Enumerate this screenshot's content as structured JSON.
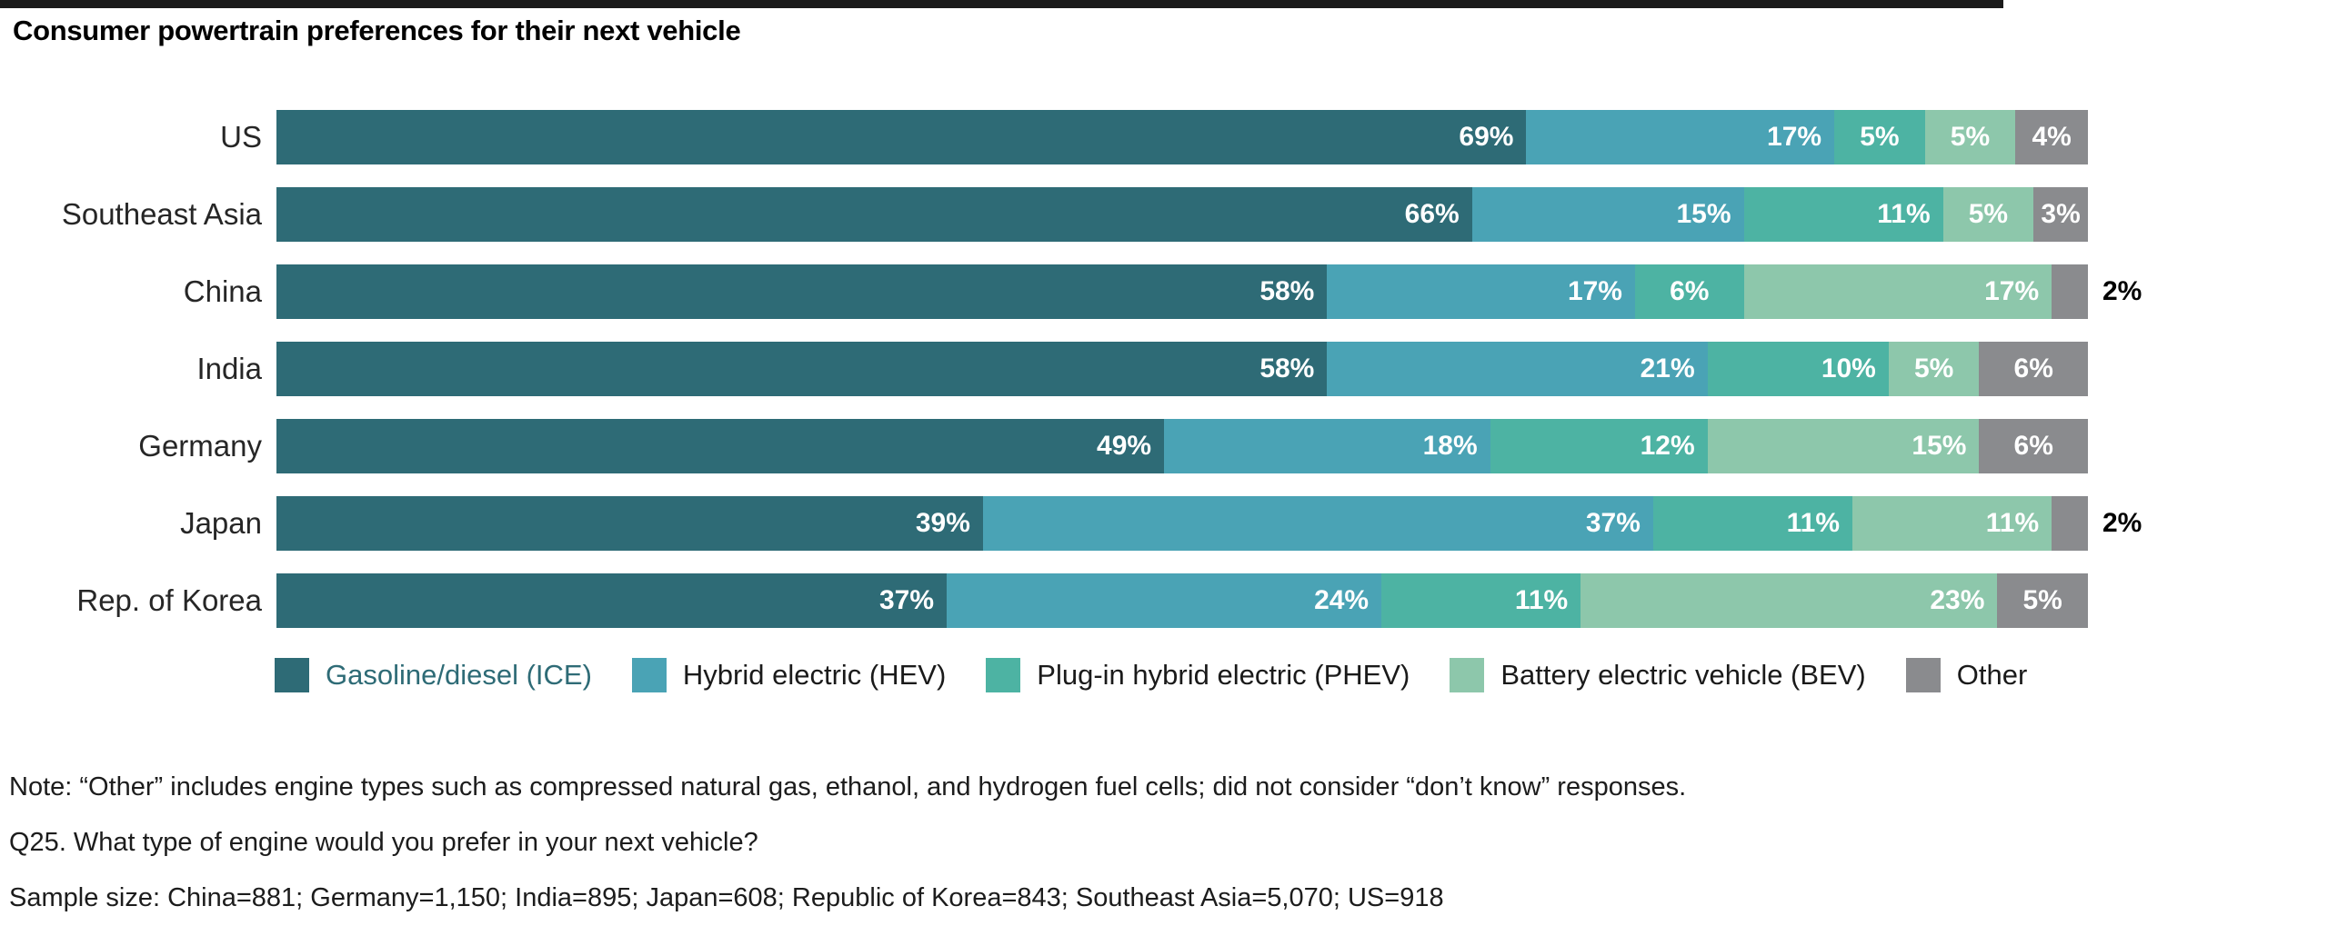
{
  "page": {
    "title": "Consumer powertrain preferences for their next vehicle"
  },
  "colors": {
    "top_rule": "#1a1a1a",
    "ice": "#2e6b76",
    "hev": "#4aa3b5",
    "phev": "#4db3a3",
    "bev": "#8dc7ab",
    "other": "#8a8b8e",
    "inside_value_label": "#ffffff",
    "outside_value_label": "#000000"
  },
  "chart_data": {
    "type": "bar",
    "orientation": "horizontal",
    "stacked": true,
    "unit": "percent",
    "value_suffix": "%",
    "xlim": [
      0,
      100
    ],
    "grid": false,
    "legend_position": "bottom",
    "categories": [
      "US",
      "Southeast Asia",
      "China",
      "India",
      "Germany",
      "Japan",
      "Rep. of Korea"
    ],
    "series": [
      {
        "name": "Gasoline/diesel (ICE)",
        "color": "#2e6b76",
        "values": [
          69,
          66,
          58,
          58,
          49,
          39,
          37
        ]
      },
      {
        "name": "Hybrid electric (HEV)",
        "color": "#4aa3b5",
        "values": [
          17,
          15,
          17,
          21,
          18,
          37,
          24
        ]
      },
      {
        "name": "Plug-in hybrid electric (PHEV)",
        "color": "#4db3a3",
        "values": [
          5,
          11,
          6,
          10,
          12,
          11,
          11
        ]
      },
      {
        "name": "Battery electric vehicle (BEV)",
        "color": "#8dc7ab",
        "values": [
          5,
          5,
          17,
          5,
          15,
          11,
          23
        ]
      },
      {
        "name": "Other",
        "color": "#8a8b8e",
        "values": [
          4,
          3,
          2,
          6,
          6,
          2,
          5
        ]
      }
    ],
    "label_outside_below": 3,
    "center_label_at_or_below": 6
  },
  "legend": [
    {
      "label": "Gasoline/diesel (ICE)",
      "color": "#2e6b76",
      "label_color": "#2e6b76"
    },
    {
      "label": "Hybrid electric (HEV)",
      "color": "#4aa3b5",
      "label_color": "#1a1a1a"
    },
    {
      "label": "Plug-in hybrid electric (PHEV)",
      "color": "#4db3a3",
      "label_color": "#1a1a1a"
    },
    {
      "label": "Battery electric vehicle (BEV)",
      "color": "#8dc7ab",
      "label_color": "#1a1a1a"
    },
    {
      "label": "Other",
      "color": "#8a8b8e",
      "label_color": "#1a1a1a"
    }
  ],
  "notes": {
    "note": "Note: “Other” includes engine types such as compressed natural gas, ethanol, and hydrogen fuel cells; did not consider “don’t know” responses.",
    "question": "Q25. What type of engine would you prefer in your next vehicle?",
    "sample": "Sample size: China=881; Germany=1,150; India=895; Japan=608; Republic of Korea=843; Southeast Asia=5,070; US=918"
  }
}
